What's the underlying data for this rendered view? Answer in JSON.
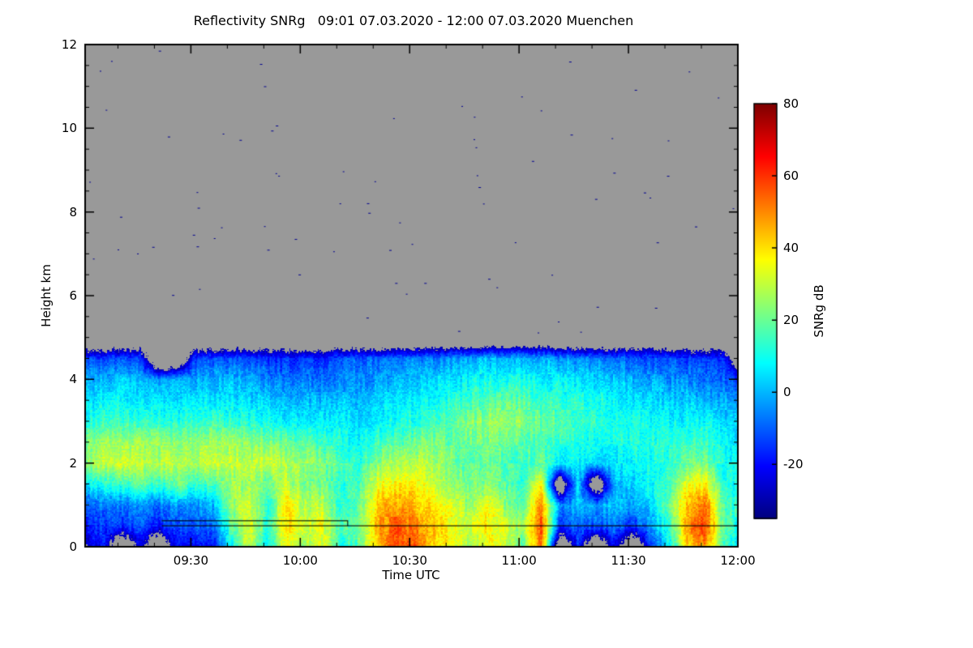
{
  "chart_data": {
    "type": "heatmap",
    "title": "Reflectivity SNRg   09:01 07.03.2020 - 12:00 07.03.2020 Muenchen",
    "xlabel": "Time UTC",
    "ylabel": "Height km",
    "x_range_minutes": [
      541,
      720
    ],
    "x_ticks": [
      {
        "minute": 570,
        "label": "09:30"
      },
      {
        "minute": 600,
        "label": "10:00"
      },
      {
        "minute": 630,
        "label": "10:30"
      },
      {
        "minute": 660,
        "label": "11:00"
      },
      {
        "minute": 690,
        "label": "11:30"
      },
      {
        "minute": 720,
        "label": "12:00"
      }
    ],
    "x_minor_step_minutes": 10,
    "y_range_km": [
      0,
      12
    ],
    "y_ticks": [
      0,
      2,
      4,
      6,
      8,
      10,
      12
    ],
    "y_minor_step_km": 0.5,
    "colorbar": {
      "label": "SNRg dB",
      "vmin": -35,
      "vmax": 80,
      "ticks": [
        80,
        60,
        40,
        20,
        0,
        -20
      ]
    },
    "colormap": [
      {
        "pos": 0.0,
        "color": "#000080"
      },
      {
        "pos": 0.125,
        "color": "#0000FF"
      },
      {
        "pos": 0.375,
        "color": "#00FFFF"
      },
      {
        "pos": 0.625,
        "color": "#FFFF00"
      },
      {
        "pos": 0.875,
        "color": "#FF0000"
      },
      {
        "pos": 1.0,
        "color": "#800000"
      }
    ],
    "no_data_color": "#999999",
    "detection_threshold_db": -30,
    "grid": {
      "time_start_minute": 541,
      "time_step_minutes": 5,
      "heights_km": [
        0,
        0.5,
        1,
        1.5,
        2,
        2.5,
        3,
        3.5,
        4,
        4.5,
        5
      ],
      "values": [
        [
          -25,
          -20,
          -12,
          5,
          24,
          22,
          12,
          5,
          -2,
          -15,
          null
        ],
        [
          -20,
          -14,
          -6,
          12,
          30,
          26,
          14,
          7,
          1,
          -12,
          null
        ],
        [
          null,
          -16,
          -8,
          14,
          32,
          26,
          15,
          8,
          2,
          -11,
          null
        ],
        [
          -22,
          -12,
          -4,
          18,
          30,
          25,
          14,
          6,
          0,
          -13,
          null
        ],
        [
          null,
          -18,
          -8,
          12,
          28,
          24,
          13,
          5,
          -4,
          null,
          null
        ],
        [
          -20,
          -12,
          -2,
          20,
          30,
          24,
          12,
          4,
          -3,
          null,
          null
        ],
        [
          -18,
          -10,
          -4,
          15,
          28,
          25,
          14,
          6,
          -1,
          -13,
          null
        ],
        [
          -20,
          -8,
          0,
          16,
          30,
          26,
          15,
          7,
          0,
          -12,
          null
        ],
        [
          8,
          18,
          26,
          24,
          30,
          25,
          14,
          6,
          0,
          -12,
          null
        ],
        [
          30,
          35,
          32,
          27,
          31,
          24,
          12,
          5,
          -2,
          -14,
          null
        ],
        [
          6,
          12,
          10,
          18,
          30,
          22,
          10,
          3,
          -5,
          -16,
          null
        ],
        [
          38,
          42,
          40,
          30,
          28,
          20,
          8,
          0,
          -8,
          -16,
          null
        ],
        [
          25,
          30,
          28,
          22,
          26,
          18,
          8,
          2,
          -6,
          -15,
          null
        ],
        [
          32,
          36,
          30,
          20,
          22,
          15,
          6,
          0,
          -8,
          -16,
          null
        ],
        [
          10,
          15,
          12,
          12,
          18,
          12,
          8,
          2,
          -5,
          -12,
          null
        ],
        [
          18,
          22,
          20,
          15,
          12,
          8,
          5,
          0,
          -5,
          -10,
          null
        ],
        [
          40,
          45,
          42,
          34,
          24,
          15,
          8,
          3,
          -3,
          -10,
          null
        ],
        [
          60,
          56,
          48,
          38,
          28,
          18,
          10,
          5,
          0,
          -8,
          null
        ],
        [
          55,
          52,
          45,
          38,
          30,
          20,
          12,
          8,
          2,
          -6,
          null
        ],
        [
          42,
          45,
          40,
          32,
          28,
          22,
          15,
          10,
          4,
          -6,
          null
        ],
        [
          35,
          38,
          32,
          25,
          22,
          20,
          18,
          12,
          5,
          -4,
          null
        ],
        [
          28,
          32,
          26,
          20,
          18,
          20,
          22,
          15,
          8,
          -1,
          null
        ],
        [
          35,
          40,
          34,
          24,
          20,
          22,
          25,
          18,
          10,
          1,
          null
        ],
        [
          30,
          32,
          25,
          18,
          16,
          20,
          26,
          20,
          10,
          1,
          null
        ],
        [
          20,
          25,
          18,
          12,
          14,
          18,
          24,
          18,
          10,
          0,
          null
        ],
        [
          55,
          58,
          52,
          40,
          20,
          15,
          20,
          15,
          8,
          0,
          null
        ],
        [
          null,
          -15,
          -5,
          null,
          5,
          12,
          18,
          14,
          8,
          -3,
          null
        ],
        [
          -18,
          -10,
          0,
          5,
          8,
          12,
          16,
          12,
          6,
          -5,
          null
        ],
        [
          null,
          -12,
          -2,
          null,
          3,
          10,
          14,
          10,
          5,
          -6,
          null
        ],
        [
          -20,
          -8,
          2,
          0,
          6,
          10,
          12,
          8,
          2,
          -8,
          null
        ],
        [
          null,
          -15,
          -5,
          3,
          8,
          12,
          10,
          6,
          0,
          -10,
          null
        ],
        [
          -15,
          -5,
          5,
          8,
          10,
          12,
          10,
          5,
          -2,
          -12,
          null
        ],
        [
          5,
          15,
          20,
          15,
          12,
          12,
          8,
          3,
          -5,
          -12,
          null
        ],
        [
          40,
          48,
          45,
          35,
          20,
          14,
          8,
          2,
          -5,
          -14,
          null
        ],
        [
          50,
          58,
          52,
          38,
          22,
          14,
          8,
          0,
          -8,
          -15,
          null
        ],
        [
          15,
          20,
          18,
          12,
          10,
          8,
          5,
          -2,
          -10,
          -18,
          null
        ],
        [
          0,
          8,
          10,
          8,
          6,
          5,
          2,
          -5,
          -12,
          null,
          null
        ]
      ]
    },
    "overlay_lines": [
      {
        "color": "#000000",
        "points": [
          [
            562,
            0.62
          ],
          [
            613,
            0.62
          ],
          [
            613,
            0.5
          ]
        ]
      },
      {
        "color": "#000000",
        "points": [
          [
            562,
            0.5
          ],
          [
            720,
            0.5
          ]
        ]
      }
    ],
    "speckles": {
      "count": 80,
      "color": "#000090"
    }
  }
}
